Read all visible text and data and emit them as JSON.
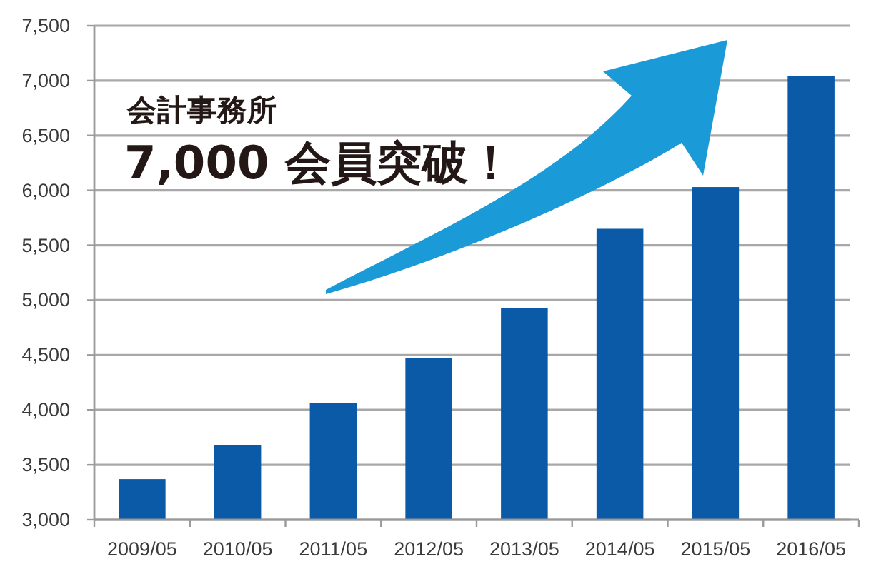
{
  "chart_data": {
    "type": "bar",
    "categories": [
      "2009/05",
      "2010/05",
      "2011/05",
      "2012/05",
      "2013/05",
      "2014/05",
      "2015/05",
      "2016/05"
    ],
    "values": [
      3370,
      3680,
      4060,
      4470,
      4930,
      5650,
      6030,
      7040
    ],
    "color": "#0b5aa8",
    "ylim": [
      3000,
      7500
    ],
    "yticks": [
      {
        "value": 3000,
        "label": "3,000"
      },
      {
        "value": 3500,
        "label": "3,500"
      },
      {
        "value": 4000,
        "label": "4,000"
      },
      {
        "value": 4500,
        "label": "4,500"
      },
      {
        "value": 5000,
        "label": "5,000"
      },
      {
        "value": 5500,
        "label": "5,500"
      },
      {
        "value": 6000,
        "label": "6,000"
      },
      {
        "value": 6500,
        "label": "6,500"
      },
      {
        "value": 7000,
        "label": "7,000"
      },
      {
        "value": 7500,
        "label": "7,500"
      }
    ],
    "grid": "y",
    "annotations": [
      "会計事務所",
      "7,000 会員突破！"
    ]
  }
}
